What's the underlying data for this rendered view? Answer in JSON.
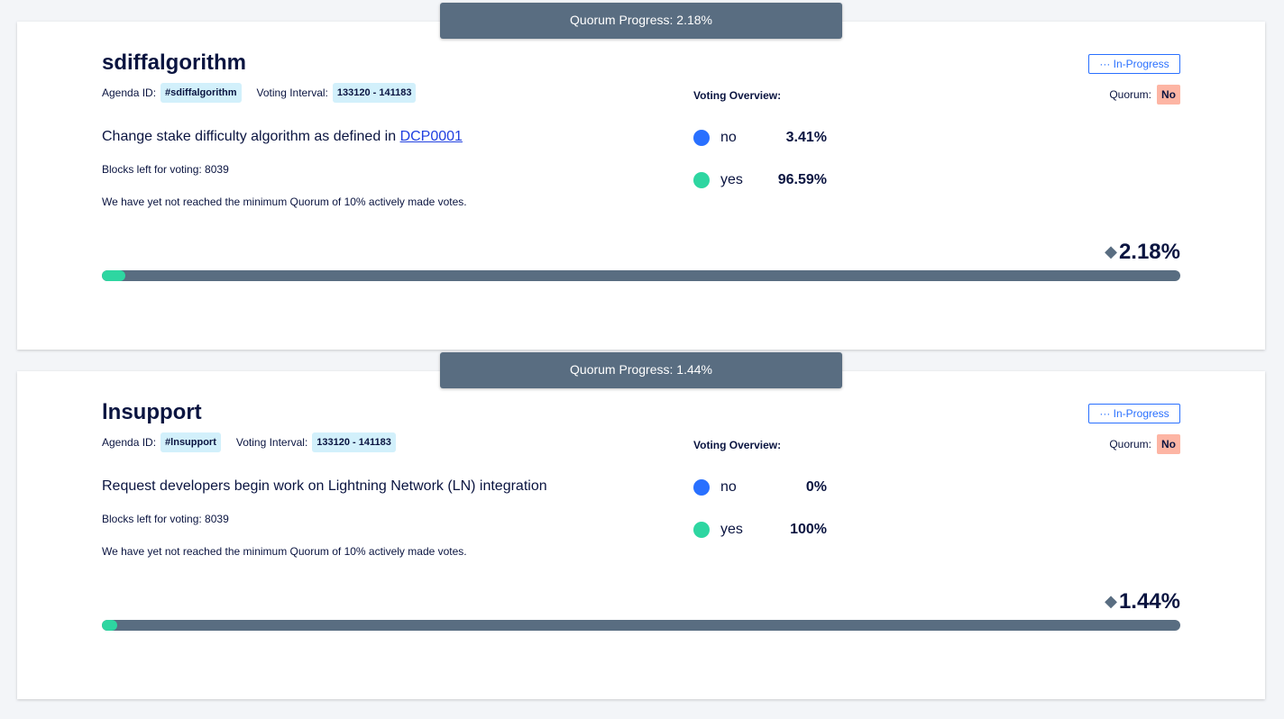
{
  "colors": {
    "background": "#f3f5f8",
    "card": "#ffffff",
    "tooltip": "#596d81",
    "accent_blue": "#2970ff",
    "accent_green": "#2ed6a1",
    "tag_bg": "#d2f0fb",
    "quorum_no_bg": "#fdb5a4",
    "text": "#0a1440"
  },
  "agendas": [
    {
      "tooltip": "Quorum Progress: 2.18%",
      "title": "sdiffalgorithm",
      "agenda_id_label": "Agenda ID:",
      "agenda_id": "#sdiffalgorithm",
      "voting_interval_label": "Voting Interval:",
      "voting_interval": "133120 - 141183",
      "description": "Change stake difficulty algorithm as defined in ",
      "description_link": "DCP0001",
      "blocks_left": "Blocks left for voting: 8039",
      "quorum_note": "We have yet not reached the minimum Quorum of 10% actively made votes.",
      "voting_overview_label": "Voting Overview:",
      "choices": [
        {
          "name": "no",
          "percent": "3.41%",
          "icon": "blue-dot-icon"
        },
        {
          "name": "yes",
          "percent": "96.59%",
          "icon": "green-dot-icon"
        }
      ],
      "status": "··· In-Progress",
      "quorum_label": "Quorum:",
      "quorum_value": "No",
      "progress_label": "2.18%",
      "progress_value": 2.18
    },
    {
      "tooltip": "Quorum Progress: 1.44%",
      "title": "lnsupport",
      "agenda_id_label": "Agenda ID:",
      "agenda_id": "#lnsupport",
      "voting_interval_label": "Voting Interval:",
      "voting_interval": "133120 - 141183",
      "description": "Request developers begin work on Lightning Network (LN) integration",
      "description_link": "",
      "blocks_left": "Blocks left for voting: 8039",
      "quorum_note": "We have yet not reached the minimum Quorum of 10% actively made votes.",
      "voting_overview_label": "Voting Overview:",
      "choices": [
        {
          "name": "no",
          "percent": "0%",
          "icon": "blue-dot-icon"
        },
        {
          "name": "yes",
          "percent": "100%",
          "icon": "green-dot-icon"
        }
      ],
      "status": "··· In-Progress",
      "quorum_label": "Quorum:",
      "quorum_value": "No",
      "progress_label": "1.44%",
      "progress_value": 1.44
    }
  ]
}
